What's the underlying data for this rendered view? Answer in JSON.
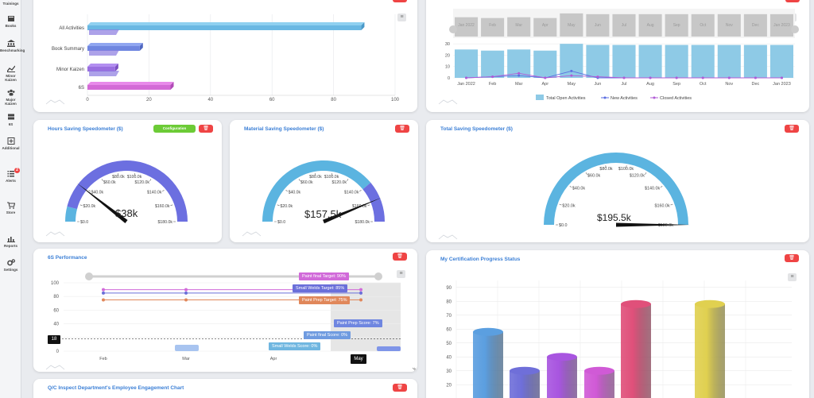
{
  "sidebar": {
    "items": [
      {
        "label": "Trainings",
        "icon": "graduation-icon"
      },
      {
        "label": "Books",
        "icon": "book-icon"
      },
      {
        "label": "Benchmarking",
        "icon": "bank-icon"
      },
      {
        "label": "Minor Kaizen",
        "icon": "trend-icon"
      },
      {
        "label": "Major Kaizen",
        "icon": "group-icon"
      },
      {
        "label": "6S",
        "icon": "layers-icon"
      },
      {
        "label": "Additional",
        "icon": "plus-box-icon"
      },
      {
        "label": "Alerts",
        "icon": "list-icon",
        "badge": "2"
      },
      {
        "label": "Store",
        "icon": "cart-icon"
      },
      {
        "label": "Reports",
        "icon": "bar-chart-icon"
      },
      {
        "label": "Settings",
        "icon": "gears-icon"
      }
    ]
  },
  "cards": {
    "hours": {
      "title": "Hours Saving Speedometer ($)",
      "config_label": "Configuration",
      "value": "$38k"
    },
    "material": {
      "title": "Material Saving Speedometer ($)",
      "value": "$157.5k"
    },
    "total": {
      "title": "Total Saving Speedometer ($)",
      "value": "$195.5k"
    },
    "six_s": {
      "title": "6S Performance"
    },
    "certification": {
      "title": "My Certification Progress Status"
    },
    "qc": {
      "title": "Q/C Inspect Department's Employee Engagement Chart"
    }
  },
  "gauge_ticks": [
    "$0.0",
    "$20.0k",
    "$40.0k",
    "$60.0k",
    "$80.0k",
    "$100.0k",
    "$120.0k",
    "$140.0k",
    "$160.0k",
    "$180.0k"
  ],
  "delete_icon": "trash-icon",
  "colors": {
    "accent_blue": "#3b7fd6",
    "delete_red": "#ef4444",
    "config_green": "#6ccb36",
    "gauge_blue": "#5bb4e0",
    "gauge_purple": "#6c6fe0"
  },
  "chart_data": [
    {
      "type": "bar",
      "orientation": "horizontal",
      "categories": [
        "All Activities",
        "Book Summary",
        "Minor Kaizen",
        "6S"
      ],
      "y_labels_visible": [
        "All Activities",
        "Book Summary",
        "Minor Kaizen",
        "6S"
      ],
      "values": [
        89,
        17,
        9,
        27
      ],
      "x_ticks": [
        0,
        20,
        40,
        60,
        80,
        100
      ],
      "xlim": [
        0,
        100
      ]
    },
    {
      "type": "line",
      "categories": [
        "Jan 2022",
        "Feb",
        "Mar",
        "Apr",
        "May",
        "Jun",
        "Jul",
        "Aug",
        "Sep",
        "Oct",
        "Nov",
        "Dec",
        "Jan 2023"
      ],
      "y_ticks": [
        0,
        10,
        20,
        30
      ],
      "ylim": [
        0,
        35
      ],
      "series": [
        {
          "name": "Total Open Activities",
          "kind": "bar",
          "color": "#8ecae6",
          "values": [
            25,
            24,
            25,
            24,
            30,
            29,
            29,
            29,
            29,
            29,
            29,
            29,
            29
          ]
        },
        {
          "name": "New Activities",
          "kind": "line",
          "color": "#5b6ee1",
          "values": [
            0,
            1,
            2,
            0,
            6,
            0,
            0,
            0,
            0,
            0,
            0,
            0,
            0
          ]
        },
        {
          "name": "Closed Activities",
          "kind": "line",
          "color": "#b15bd6",
          "values": [
            0,
            1,
            4,
            0,
            2,
            1,
            0,
            0,
            0,
            0,
            0,
            0,
            0
          ]
        }
      ],
      "legend": "bottom"
    },
    {
      "type": "bar",
      "x_labels": [
        "Feb",
        "Mar",
        "Apr",
        "May"
      ],
      "y_ticks": [
        0,
        20,
        40,
        60,
        80,
        100
      ],
      "ylim": [
        0,
        100
      ],
      "crosshair_value": "18",
      "targets": [
        {
          "label": "Paint final Target: 90%",
          "value": 90,
          "color": "#d16ad9"
        },
        {
          "label": "Small Welds Target: 85%",
          "value": 85,
          "color": "#6a6fd9"
        },
        {
          "label": "Paint Prep Target: 75%",
          "value": 75,
          "color": "#e0875a"
        }
      ],
      "scores": [
        {
          "label": "Paint Prep Score: 7%",
          "value": 7,
          "color": "#6f86e0"
        },
        {
          "label": "Paint final Score: 0%",
          "value": 0,
          "color": "#6f9be0"
        },
        {
          "label": "Small Welds Score: 0%",
          "value": 0,
          "color": "#6fb6e0"
        }
      ]
    },
    {
      "type": "bar",
      "style": "3d-cylinder",
      "y_ticks": [
        20,
        30,
        40,
        50,
        60,
        70,
        80,
        90
      ],
      "ylim": [
        15,
        95
      ],
      "values": [
        58,
        30,
        40,
        30,
        78,
        31,
        78
      ],
      "colors": [
        "#5b9fe0",
        "#6f6fd9",
        "#a855e0",
        "#d05ad6",
        "#e0507a",
        "#ffffff",
        "#e0d050"
      ]
    }
  ]
}
